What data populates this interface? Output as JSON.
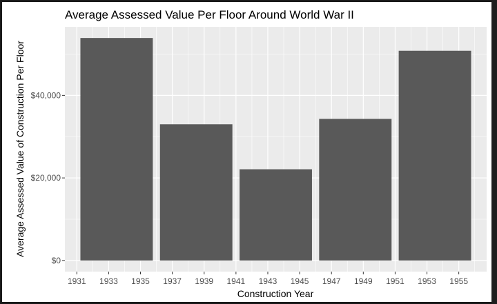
{
  "colors": {
    "panel_background": "#ebebeb",
    "gridline": "#ffffff",
    "bar_fill": "#595959",
    "text": "#000000",
    "tick_text": "#4d4d4d",
    "frame_border": "#1a1a1a"
  },
  "chart_data": {
    "type": "bar",
    "title": "Average Assessed Value Per Floor Around World War II",
    "xlabel": "Construction Year",
    "ylabel": "Average Assessed Value of Construction Per Floor",
    "bins": [
      {
        "start": 1931,
        "end": 1936,
        "value": 53900
      },
      {
        "start": 1936,
        "end": 1941,
        "value": 33000
      },
      {
        "start": 1941,
        "end": 1946,
        "value": 22100
      },
      {
        "start": 1946,
        "end": 1951,
        "value": 34300
      },
      {
        "start": 1951,
        "end": 1956,
        "value": 50800
      }
    ],
    "x_ticks": [
      1931,
      1933,
      1935,
      1937,
      1939,
      1941,
      1943,
      1945,
      1947,
      1949,
      1951,
      1953,
      1955
    ],
    "x_tick_labels": [
      "1931",
      "1933",
      "1935",
      "1937",
      "1939",
      "1941",
      "1943",
      "1945",
      "1947",
      "1949",
      "1951",
      "1953",
      "1955"
    ],
    "y_ticks": [
      0,
      20000,
      40000
    ],
    "y_tick_labels": [
      "$0",
      "$20,000",
      "$40,000"
    ],
    "xlim": [
      1930.25,
      1956.75
    ],
    "ylim": [
      -2695,
      56595
    ],
    "grid": true,
    "legend": "none"
  }
}
